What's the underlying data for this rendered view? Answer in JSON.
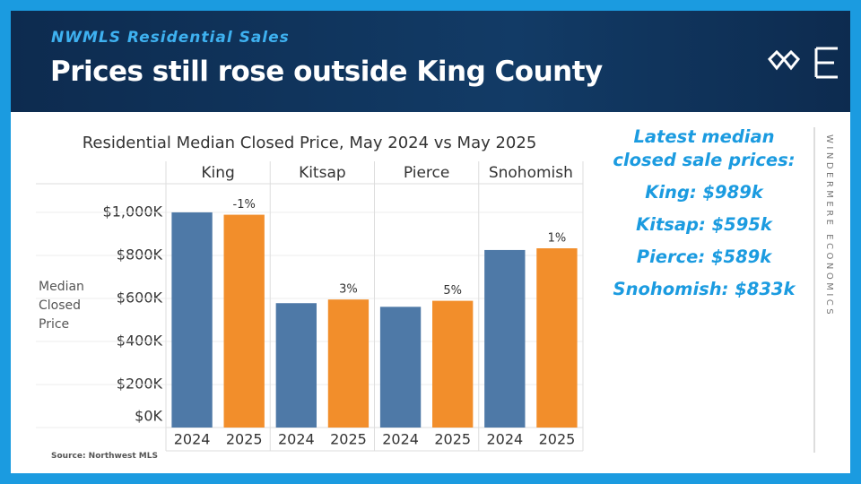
{
  "header": {
    "subtitle": "NWMLS Residential Sales",
    "title": "Prices still rose outside King County"
  },
  "chart_data": {
    "type": "bar",
    "title": "Residential Median Closed Price, May 2024 vs May 2025",
    "y_axis_label": "Median Closed Price",
    "categories": [
      "King",
      "Kitsap",
      "Pierce",
      "Snohomish"
    ],
    "series": [
      {
        "name": "2024",
        "color": "#4e79a7",
        "values": [
          1000,
          578,
          561,
          825
        ]
      },
      {
        "name": "2025",
        "color": "#f28e2b",
        "values": [
          989,
          595,
          589,
          833
        ],
        "change_labels": [
          "-1%",
          "3%",
          "5%",
          "1%"
        ]
      }
    ],
    "ylim": [
      0,
      1133
    ],
    "yticks": [
      {
        "value": 0,
        "label": "$0K"
      },
      {
        "value": 200,
        "label": "$200K"
      },
      {
        "value": 400,
        "label": "$400K"
      },
      {
        "value": 600,
        "label": "$600K"
      },
      {
        "value": 800,
        "label": "$800K"
      },
      {
        "value": 1000,
        "label": "$1,000K"
      }
    ],
    "grid": true
  },
  "sidebar": {
    "intro": "Latest median closed sale prices:",
    "items": [
      "King: $989k",
      "Kitsap: $595k",
      "Pierce: $589k",
      "Snohomish: $833k"
    ]
  },
  "brand": "WINDERMERE ECONOMICS",
  "source": "Source: Northwest MLS"
}
